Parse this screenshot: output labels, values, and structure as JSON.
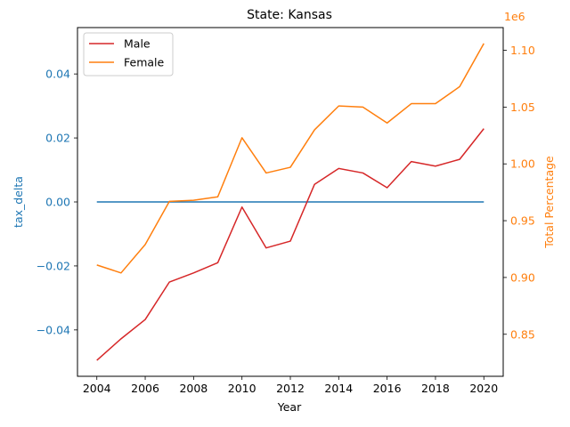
{
  "chart_data": {
    "type": "line",
    "title": "State: Kansas",
    "xlabel": "Year",
    "x": [
      2004,
      2005,
      2006,
      2007,
      2008,
      2009,
      2010,
      2011,
      2012,
      2013,
      2014,
      2015,
      2016,
      2017,
      2018,
      2019,
      2020
    ],
    "xticks": [
      "2004",
      "2006",
      "2008",
      "2010",
      "2012",
      "2014",
      "2016",
      "2018",
      "2020"
    ],
    "xlim": [
      2003.2,
      2020.8
    ],
    "left_axis": {
      "label": "tax_delta",
      "color": "#1f77b4",
      "ylim": [
        -0.0545,
        0.0545
      ],
      "ticks": [
        "−0.04",
        "−0.02",
        "0.00",
        "0.02",
        "0.04"
      ],
      "tick_values": [
        -0.04,
        -0.02,
        0.0,
        0.02,
        0.04
      ],
      "series": [
        {
          "color": "#1f77b4",
          "values": [
            0,
            0,
            0,
            0,
            0,
            0,
            0,
            0,
            0,
            0,
            0,
            0,
            0,
            0,
            0,
            0,
            0
          ]
        }
      ]
    },
    "right_axis": {
      "label": "Total Percentage",
      "color": "#ff7f0e",
      "offset_text": "1e6",
      "ylim": [
        813000,
        1120000
      ],
      "ticks": [
        "0.85",
        "0.90",
        "0.95",
        "1.00",
        "1.05",
        "1.10"
      ],
      "tick_values": [
        850000,
        900000,
        950000,
        1000000,
        1050000,
        1100000
      ],
      "series": [
        {
          "name": "Male",
          "color": "#d62728",
          "values": [
            827000,
            846000,
            863000,
            896000,
            904000,
            913000,
            962000,
            926000,
            932000,
            982000,
            996000,
            992000,
            979000,
            1002000,
            998000,
            1004000,
            1031000
          ]
        },
        {
          "name": "Female",
          "color": "#ff7f0e",
          "values": [
            911000,
            904000,
            929000,
            967000,
            968000,
            971000,
            1023000,
            992000,
            997000,
            1030000,
            1051000,
            1050000,
            1036000,
            1053000,
            1053000,
            1068000,
            1106000
          ]
        }
      ]
    },
    "legend": {
      "placement": "top-left",
      "entries": [
        "Male",
        "Female"
      ]
    },
    "grid": false
  }
}
